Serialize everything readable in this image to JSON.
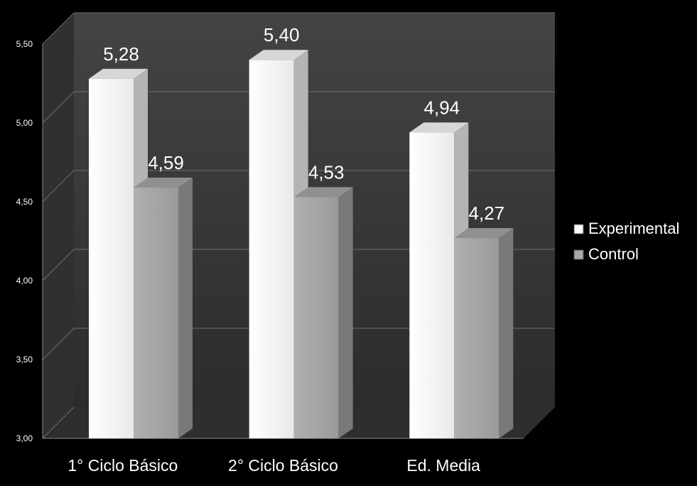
{
  "chart_data": {
    "type": "bar",
    "title": "",
    "xlabel": "",
    "ylabel": "",
    "categories": [
      "1° Ciclo Básico",
      "2° Ciclo Básico",
      "Ed. Media"
    ],
    "series": [
      {
        "name": "Experimental",
        "values": [
          5.28,
          5.4,
          4.94
        ],
        "labels": [
          "5,28",
          "5,40",
          "4,94"
        ]
      },
      {
        "name": "Control",
        "values": [
          4.59,
          4.53,
          4.27
        ],
        "labels": [
          "4,59",
          "4,53",
          "4,27"
        ]
      }
    ],
    "ylim": [
      3.0,
      5.5
    ],
    "yticks": [
      3.0,
      3.5,
      4.0,
      4.5,
      5.0,
      5.5
    ],
    "ytick_labels": [
      "3,00",
      "3,50",
      "4,00",
      "4,50",
      "5,00",
      "5,50"
    ],
    "grid": true,
    "legend_position": "right",
    "style": "3d-clustered-columns",
    "colors": {
      "background": "#000000",
      "wall": "#3a3a3a",
      "floor": "#2e2e2e",
      "gridline": "#6e6e6e",
      "text": "#ffffff",
      "experimental": "#fafafa",
      "control": "#a8a8a8"
    }
  }
}
